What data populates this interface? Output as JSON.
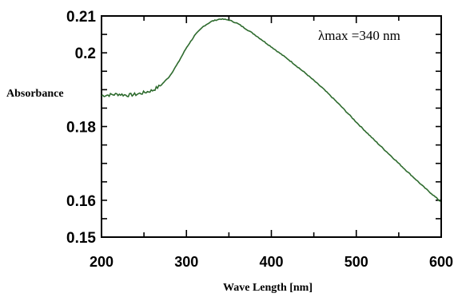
{
  "chart_data": {
    "type": "line",
    "title": "",
    "xlabel": "Wave Length [nm]",
    "ylabel": "Absorbance",
    "xlim": [
      200,
      600
    ],
    "ylim": [
      0.15,
      0.21
    ],
    "x_ticks": [
      200,
      300,
      400,
      500,
      600
    ],
    "x_tick_labels": [
      "200",
      "300",
      "400",
      "500",
      "600"
    ],
    "y_ticks": [
      0.15,
      0.16,
      0.18,
      0.2,
      0.21
    ],
    "y_tick_labels": [
      "0.15",
      "0.16",
      "0.18",
      "0.2",
      "0.21"
    ],
    "annotation": "λmax =340 nm",
    "grid": false,
    "line_color": "#2e6b2e",
    "series": [
      {
        "x": [
          200,
          210,
          220,
          230,
          240,
          250,
          260,
          270,
          280,
          290,
          300,
          310,
          320,
          330,
          340,
          350,
          360,
          370,
          380,
          390,
          400,
          420,
          440,
          460,
          480,
          500,
          520,
          540,
          560,
          580,
          600
        ],
        "y": [
          0.1884,
          0.1886,
          0.1888,
          0.1885,
          0.1887,
          0.1892,
          0.1898,
          0.1912,
          0.1936,
          0.1972,
          0.2014,
          0.2048,
          0.2072,
          0.2086,
          0.2092,
          0.2089,
          0.208,
          0.2065,
          0.205,
          0.2033,
          0.2016,
          0.1982,
          0.1945,
          0.1905,
          0.186,
          0.1812,
          0.1766,
          0.1722,
          0.1678,
          0.1635,
          0.1595
        ]
      }
    ]
  }
}
